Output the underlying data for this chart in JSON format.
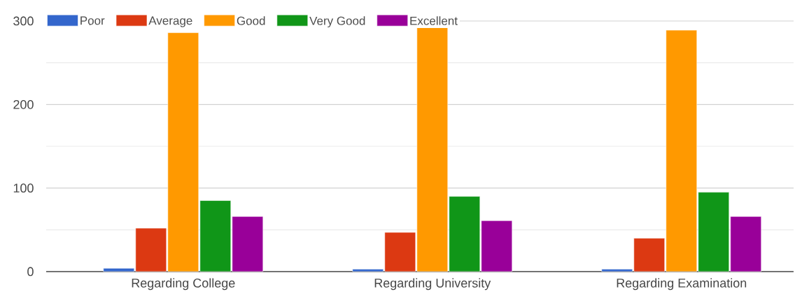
{
  "chart_data": {
    "type": "bar",
    "categories": [
      "Regarding College",
      "Regarding University",
      "Regarding Examination"
    ],
    "series": [
      {
        "name": "Poor",
        "color": "#3366cc",
        "values": [
          4,
          3,
          3
        ]
      },
      {
        "name": "Average",
        "color": "#dc3912",
        "values": [
          52,
          47,
          40
        ]
      },
      {
        "name": "Good",
        "color": "#ff9900",
        "values": [
          286,
          292,
          289
        ]
      },
      {
        "name": "Very Good",
        "color": "#109618",
        "values": [
          85,
          90,
          95
        ]
      },
      {
        "name": "Excellent",
        "color": "#990099",
        "values": [
          66,
          61,
          66
        ]
      }
    ],
    "ylim": [
      0,
      300
    ],
    "yticks": [
      0,
      {
        "value": 50,
        "label": null
      },
      100,
      {
        "value": 150,
        "label": null
      },
      200,
      {
        "value": 250,
        "label": null
      },
      300
    ],
    "grid": "y",
    "legend": "top left"
  }
}
